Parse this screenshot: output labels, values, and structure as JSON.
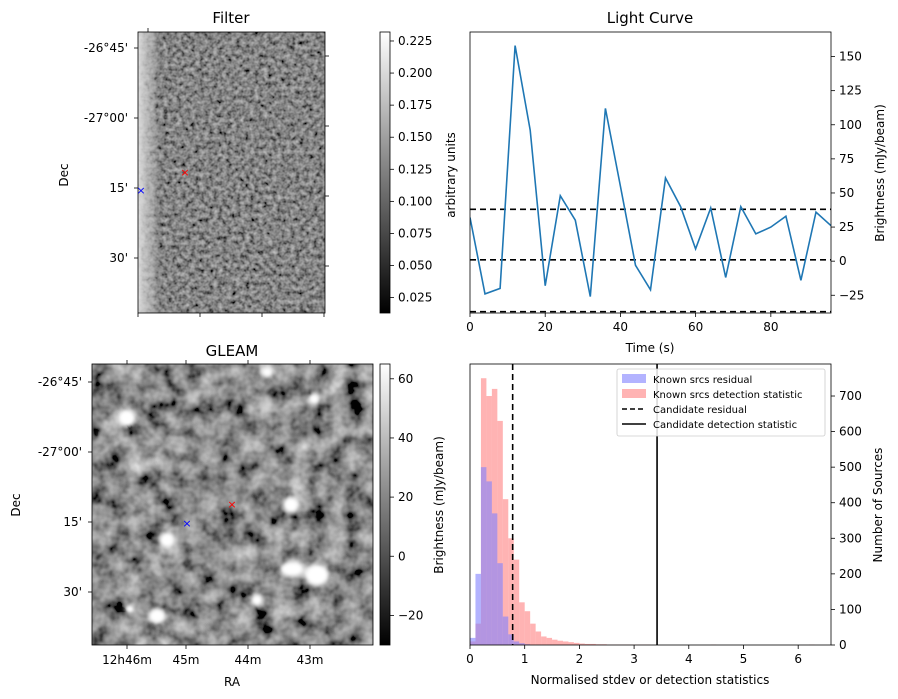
{
  "chart_data": [
    {
      "id": "filter",
      "type": "heatmap",
      "title": "Filter",
      "ylabel": "Dec",
      "yticks": [
        "-26°45'",
        "-27°00'",
        "15'",
        "30'"
      ],
      "colorbar": {
        "label": "arbitrary units",
        "ticks": [
          "0.225",
          "0.200",
          "0.175",
          "0.150",
          "0.125",
          "0.100",
          "0.075",
          "0.050",
          "0.025"
        ],
        "range": [
          0.013,
          0.232
        ]
      },
      "markers": [
        {
          "label": "candidate",
          "symbol": "×",
          "color": "#ff0000"
        },
        {
          "label": "comparison",
          "symbol": "×",
          "color": "#0000ff"
        }
      ]
    },
    {
      "id": "lightcurve",
      "type": "line",
      "title": "Light Curve",
      "xlabel": "Time (s)",
      "ylabel": "Brightness (mJy/beam)",
      "xlim": [
        0,
        96
      ],
      "ylim": [
        -38,
        168
      ],
      "xticks": [
        0,
        20,
        40,
        60,
        80
      ],
      "yticks": [
        -25,
        0,
        25,
        50,
        75,
        100,
        125,
        150
      ],
      "series": [
        {
          "name": "light curve",
          "color": "#1f77b4",
          "x": [
            0,
            4,
            8,
            12,
            16,
            20,
            24,
            28,
            32,
            36,
            40,
            44,
            48,
            52,
            56,
            60,
            64,
            68,
            72,
            76,
            80,
            84,
            88,
            92,
            96
          ],
          "y": [
            32,
            -24,
            -20,
            158,
            96,
            -18,
            48,
            30,
            -26,
            112,
            55,
            -3,
            -21,
            61,
            40,
            9,
            39,
            -12,
            40,
            20,
            25,
            33,
            -14,
            36,
            26
          ]
        }
      ],
      "hlines": [
        38,
        1,
        -37
      ]
    },
    {
      "id": "gleam",
      "type": "heatmap",
      "title": "GLEAM",
      "xlabel": "RA",
      "ylabel": "Dec",
      "xticks": [
        "12h46m",
        "45m",
        "44m",
        "43m"
      ],
      "yticks": [
        "-26°45'",
        "-27°00'",
        "15'",
        "30'"
      ],
      "colorbar": {
        "label": "Brightness (mJy/beam)",
        "ticks": [
          "60",
          "40",
          "20",
          "0",
          "−20"
        ],
        "range": [
          -30,
          65
        ]
      },
      "markers": [
        {
          "label": "candidate",
          "symbol": "×",
          "color": "#ff0000"
        },
        {
          "label": "comparison",
          "symbol": "×",
          "color": "#0000ff"
        }
      ]
    },
    {
      "id": "histogram",
      "type": "bar",
      "xlabel": "Normalised stdev or detection statistics",
      "ylabel": "Number of Sources",
      "xlim": [
        0,
        6.6
      ],
      "ylim": [
        0,
        790
      ],
      "xticks": [
        0,
        1,
        2,
        3,
        4,
        5,
        6
      ],
      "yticks": [
        0,
        100,
        200,
        300,
        400,
        500,
        600,
        700
      ],
      "bin_width": 0.1,
      "series": [
        {
          "name": "Known srcs residual",
          "color": "#8080ff",
          "values": [
            20,
            200,
            500,
            460,
            370,
            230,
            80,
            30,
            10,
            5,
            2
          ]
        },
        {
          "name": "Known srcs detection statistic",
          "color": "#ff8080",
          "values": [
            10,
            60,
            750,
            700,
            720,
            630,
            410,
            300,
            240,
            120,
            95,
            60,
            38,
            24,
            20,
            15,
            12,
            10,
            8,
            6,
            4,
            3,
            3,
            2,
            2,
            1,
            1,
            1,
            1,
            1,
            1,
            1,
            1,
            0,
            0,
            0,
            0,
            0,
            0,
            0,
            0,
            0,
            0,
            0,
            1,
            0,
            0,
            0,
            0,
            0,
            0,
            0,
            0,
            0,
            0,
            0,
            0,
            0,
            0,
            0,
            0,
            0,
            1
          ]
        }
      ],
      "vlines": [
        {
          "name": "Candidate residual",
          "x": 0.78,
          "style": "dashed"
        },
        {
          "name": "Candidate detection statistic",
          "x": 3.42,
          "style": "solid"
        }
      ],
      "left_axis_label": "Brightness (mJy/beam)"
    }
  ]
}
